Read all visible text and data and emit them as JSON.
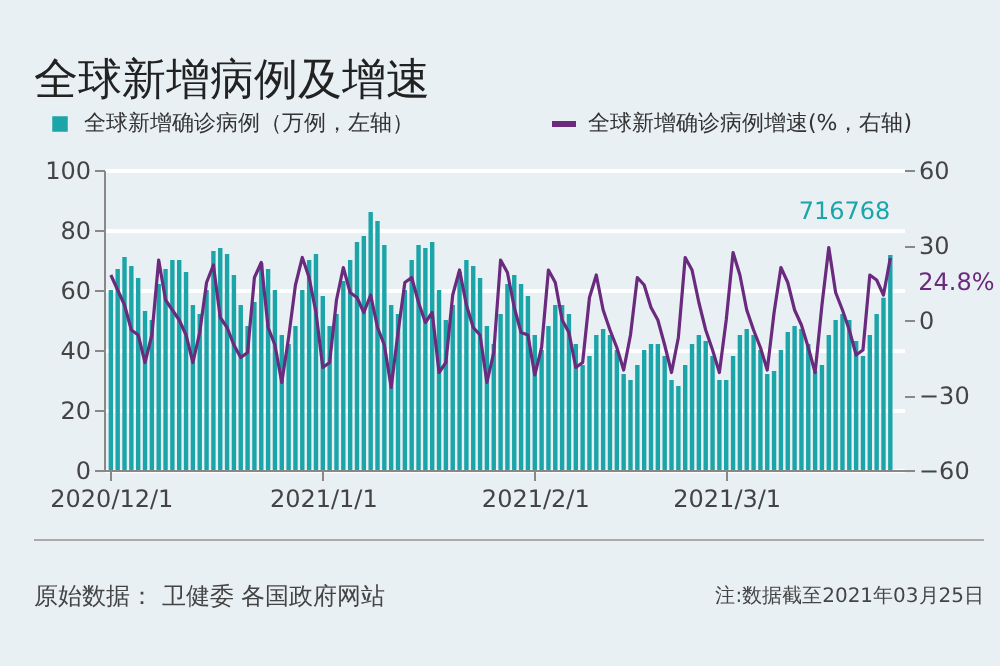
{
  "chart_data": {
    "type": "bar",
    "title": "全球新增病例及增速",
    "x": [
      "2020-12-01",
      "2020-12-02",
      "2020-12-03",
      "2020-12-04",
      "2020-12-05",
      "2020-12-06",
      "2020-12-07",
      "2020-12-08",
      "2020-12-09",
      "2020-12-10",
      "2020-12-11",
      "2020-12-12",
      "2020-12-13",
      "2020-12-14",
      "2020-12-15",
      "2020-12-16",
      "2020-12-17",
      "2020-12-18",
      "2020-12-19",
      "2020-12-20",
      "2020-12-21",
      "2020-12-22",
      "2020-12-23",
      "2020-12-24",
      "2020-12-25",
      "2020-12-26",
      "2020-12-27",
      "2020-12-28",
      "2020-12-29",
      "2020-12-30",
      "2020-12-31",
      "2021-01-01",
      "2021-01-02",
      "2021-01-03",
      "2021-01-04",
      "2021-01-05",
      "2021-01-06",
      "2021-01-07",
      "2021-01-08",
      "2021-01-09",
      "2021-01-10",
      "2021-01-11",
      "2021-01-12",
      "2021-01-13",
      "2021-01-14",
      "2021-01-15",
      "2021-01-16",
      "2021-01-17",
      "2021-01-18",
      "2021-01-19",
      "2021-01-20",
      "2021-01-21",
      "2021-01-22",
      "2021-01-23",
      "2021-01-24",
      "2021-01-25",
      "2021-01-26",
      "2021-01-27",
      "2021-01-28",
      "2021-01-29",
      "2021-01-30",
      "2021-01-31",
      "2021-02-01",
      "2021-02-02",
      "2021-02-03",
      "2021-02-04",
      "2021-02-05",
      "2021-02-06",
      "2021-02-07",
      "2021-02-08",
      "2021-02-09",
      "2021-02-10",
      "2021-02-11",
      "2021-02-12",
      "2021-02-13",
      "2021-02-14",
      "2021-02-15",
      "2021-02-16",
      "2021-02-17",
      "2021-02-18",
      "2021-02-19",
      "2021-02-20",
      "2021-02-21",
      "2021-02-22",
      "2021-02-23",
      "2021-02-24",
      "2021-02-25",
      "2021-02-26",
      "2021-02-27",
      "2021-02-28",
      "2021-03-01",
      "2021-03-02",
      "2021-03-03",
      "2021-03-04",
      "2021-03-05",
      "2021-03-06",
      "2021-03-07",
      "2021-03-08",
      "2021-03-09",
      "2021-03-10",
      "2021-03-11",
      "2021-03-12",
      "2021-03-13",
      "2021-03-14",
      "2021-03-15",
      "2021-03-16",
      "2021-03-17",
      "2021-03-18",
      "2021-03-19",
      "2021-03-20",
      "2021-03-21",
      "2021-03-22",
      "2021-03-23",
      "2021-03-24",
      "2021-03-25"
    ],
    "series": [
      {
        "name": "全球新增确诊病例（万例，左轴）",
        "type": "bar",
        "color": "#1ba5a8",
        "values": [
          60,
          67,
          71,
          68,
          64,
          53,
          50,
          62,
          67,
          70,
          70,
          66,
          55,
          52,
          60,
          73,
          74,
          72,
          65,
          55,
          48,
          56,
          69,
          67,
          60,
          45,
          42,
          48,
          60,
          70,
          72,
          58,
          48,
          52,
          63,
          70,
          76,
          78,
          86,
          83,
          75,
          55,
          52,
          60,
          70,
          75,
          74,
          76,
          60,
          50,
          55,
          66,
          70,
          68,
          64,
          48,
          42,
          52,
          62,
          65,
          62,
          58,
          45,
          40,
          48,
          55,
          55,
          52,
          42,
          35,
          38,
          45,
          47,
          45,
          40,
          32,
          30,
          35,
          40,
          42,
          42,
          38,
          30,
          28,
          35,
          42,
          45,
          43,
          38,
          30,
          30,
          38,
          45,
          47,
          45,
          40,
          32,
          33,
          40,
          46,
          48,
          47,
          42,
          33,
          35,
          45,
          50,
          52,
          50,
          43,
          38,
          45,
          52,
          57.4,
          71.7
        ],
        "value_labels": [
          null,
          null,
          null,
          null,
          null,
          null,
          null,
          null,
          null,
          null,
          null,
          null,
          null,
          null,
          null,
          null,
          null,
          null,
          null,
          null,
          null,
          null,
          null,
          null,
          null,
          null,
          null,
          null,
          null,
          null,
          null,
          null,
          null,
          null,
          null,
          null,
          null,
          null,
          null,
          null,
          null,
          null,
          null,
          null,
          null,
          null,
          null,
          null,
          null,
          null,
          null,
          null,
          null,
          null,
          null,
          null,
          null,
          null,
          null,
          null,
          null,
          null,
          null,
          null,
          null,
          null,
          null,
          null,
          null,
          null,
          null,
          null,
          null,
          null,
          null,
          null,
          null,
          null,
          null,
          null,
          null,
          null,
          null,
          null,
          null,
          null,
          null,
          null,
          null,
          null,
          null,
          null,
          null,
          null,
          null,
          null,
          null,
          null,
          null,
          null,
          null,
          null,
          null,
          null,
          null,
          null,
          null,
          null,
          null,
          null,
          null,
          null,
          null,
          null,
          null
        ]
      },
      {
        "name": "全球新增确诊病例增速(%，右轴)",
        "type": "line",
        "axis": "y2",
        "color": "#6a2a7e",
        "values": [
          18,
          12,
          6,
          -4,
          -6,
          -17,
          -6,
          24,
          8,
          4,
          0,
          -6,
          -17,
          -5,
          15,
          22,
          1,
          -3,
          -10,
          -15,
          -13,
          17,
          23,
          -3,
          -10,
          -25,
          -7,
          14,
          25,
          17,
          3,
          -19,
          -17,
          8,
          21,
          11,
          9,
          3,
          10,
          -3,
          -10,
          -27,
          -5,
          15,
          17,
          7,
          -1,
          3,
          -21,
          -17,
          10,
          20,
          6,
          -3,
          -6,
          -25,
          -13,
          24,
          19,
          5,
          -5,
          -6,
          -22,
          -11,
          20,
          15,
          0,
          -5,
          -19,
          -17,
          9,
          18,
          4,
          -4,
          -11,
          -20,
          -6,
          17,
          14,
          5,
          0,
          -10,
          -21,
          -7,
          25,
          20,
          7,
          -4,
          -12,
          -21,
          0,
          27,
          18,
          4,
          -4,
          -11,
          -20,
          3,
          21,
          15,
          4,
          -2,
          -11,
          -21,
          6,
          29,
          11,
          4,
          -4,
          -14,
          -12,
          18,
          16,
          10,
          24.8
        ],
        "value_labels": [
          null,
          null,
          null,
          null,
          null,
          null,
          null,
          null,
          null,
          null,
          null,
          null,
          null,
          null,
          null,
          null,
          null,
          null,
          null,
          null,
          null,
          null,
          null,
          null,
          null,
          null,
          null,
          null,
          null,
          null,
          null,
          null,
          null,
          null,
          null,
          null,
          null,
          null,
          null,
          null,
          null,
          null,
          null,
          null,
          null,
          null,
          null,
          null,
          null,
          null,
          null,
          null,
          null,
          null,
          null,
          null,
          null,
          null,
          null,
          null,
          null,
          null,
          null,
          null,
          null,
          null,
          null,
          null,
          null,
          null,
          null,
          null,
          null,
          null,
          null,
          null,
          null,
          null,
          null,
          null,
          null,
          null,
          null,
          null,
          null,
          null,
          null,
          null,
          null,
          null,
          null,
          null,
          null,
          null,
          null,
          null,
          null,
          null,
          null,
          null,
          null,
          null,
          null,
          null,
          null,
          null,
          null,
          null,
          null,
          null,
          null,
          null,
          null,
          null,
          "24.8%"
        ]
      }
    ],
    "xlim": [
      "2020-11-30",
      "2021-03-27"
    ],
    "xticks": [
      {
        "value": "2020-12-01",
        "label": "2020/12/1"
      },
      {
        "value": "2021-01-01",
        "label": "2021/1/1"
      },
      {
        "value": "2021-02-01",
        "label": "2021/2/1"
      },
      {
        "value": "2021-03-01",
        "label": "2021/3/1"
      }
    ],
    "ylim": [
      0,
      100
    ],
    "yticks": [
      0,
      20,
      40,
      60,
      80,
      100
    ],
    "y2lim": [
      -60,
      60
    ],
    "y2ticks": [
      {
        "value": -60,
        "label": "−60"
      },
      {
        "value": -30,
        "label": "−30"
      },
      0,
      30,
      60
    ],
    "grid": "y",
    "legend": "top",
    "annotations": [
      {
        "text": "716768",
        "x": "2021-03-25",
        "y": 71.7
      },
      "原始数据：  卫健委  各国政府网站",
      "注:数据截至2021年03月25日"
    ]
  }
}
